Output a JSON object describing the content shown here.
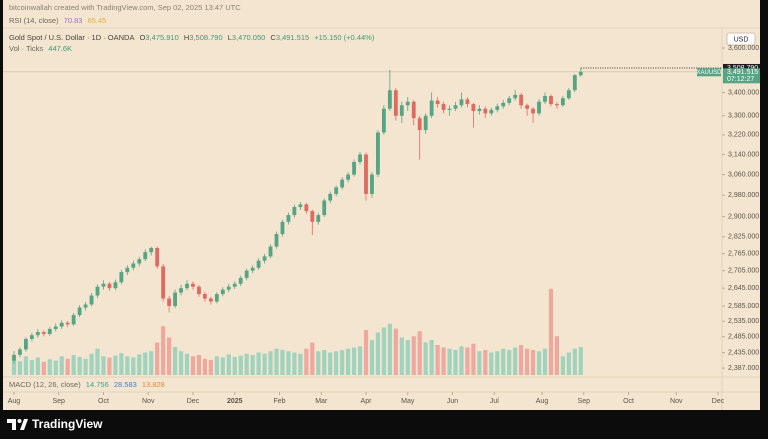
{
  "header": {
    "credit": "bitcoinwallah created with TradingView.com, Sep 02, 2025 13:47 UTC",
    "rsi": {
      "name": "RSI (14, close)",
      "values": [
        70.83,
        65.45
      ],
      "colors": [
        "#9a70d6",
        "#e0b23a"
      ]
    }
  },
  "legend": {
    "symbol": "Gold Spot / U.S. Dollar · 1D · OANDA",
    "open": {
      "prefix": "O",
      "value": 3475.91,
      "label": "3,475.910"
    },
    "high": {
      "prefix": "H",
      "value": 3508.79,
      "label": "3,508.790"
    },
    "low": {
      "prefix": "L",
      "value": 3470.05,
      "label": "3,470.050"
    },
    "close": {
      "prefix": "C",
      "value": 3491.515,
      "label": "3,491.515"
    },
    "change": {
      "value": 15.15,
      "label": "+15.150 (+0.44%)"
    },
    "volume": {
      "name": "Vol · Ticks",
      "value": 447.6,
      "label": "447.6K"
    }
  },
  "chart_data": {
    "type": "candlestick",
    "currency": "USD",
    "log_scale": true,
    "up_color": "#55a584",
    "down_color": "#e06a60",
    "volume_up_color": "#9fd3bd",
    "volume_down_color": "#f0a79e",
    "xlim": [
      -0.5,
      118.5
    ],
    "xticks": [
      {
        "value": 0,
        "label": "Aug"
      },
      {
        "value": 7.5,
        "label": "Sep"
      },
      {
        "value": 15,
        "label": "Oct"
      },
      {
        "value": 22.5,
        "label": "Nov"
      },
      {
        "value": 30,
        "label": "Dec"
      },
      {
        "value": 37,
        "label": "2025"
      },
      {
        "value": 44.5,
        "label": "Feb"
      },
      {
        "value": 51.5,
        "label": "Mar"
      },
      {
        "value": 59,
        "label": "Apr"
      },
      {
        "value": 66,
        "label": "May"
      },
      {
        "value": 73.5,
        "label": "Jun"
      },
      {
        "value": 80.5,
        "label": "Jul"
      },
      {
        "value": 88.5,
        "label": "Aug"
      },
      {
        "value": 95.5,
        "label": "Sep"
      },
      {
        "value": 103,
        "label": "Oct"
      },
      {
        "value": 111,
        "label": "Nov"
      },
      {
        "value": 118,
        "label": "Dec"
      }
    ],
    "ylim": [
      2366,
      3684
    ],
    "yticks": [
      {
        "value": 3600,
        "label": "3,600.000"
      },
      {
        "value": 3400,
        "label": "3,400.000"
      },
      {
        "value": 3300,
        "label": "3,300.000"
      },
      {
        "value": 3220,
        "label": "3,220.000"
      },
      {
        "value": 3140,
        "label": "3,140.000"
      },
      {
        "value": 3060,
        "label": "3,060.000"
      },
      {
        "value": 2980,
        "label": "2,980.000"
      },
      {
        "value": 2900,
        "label": "2,900.000"
      },
      {
        "value": 2825,
        "label": "2,825.000"
      },
      {
        "value": 2765,
        "label": "2,765.000"
      },
      {
        "value": 2705,
        "label": "2,705.000"
      },
      {
        "value": 2645,
        "label": "2,645.000"
      },
      {
        "value": 2585,
        "label": "2,585.000"
      },
      {
        "value": 2535,
        "label": "2,535.000"
      },
      {
        "value": 2485,
        "label": "2,485.000"
      },
      {
        "value": 2435,
        "label": "2,435.000"
      },
      {
        "value": 2387,
        "label": "2,387.000"
      }
    ],
    "high_marker": {
      "value": 3508.79,
      "label": "3,508.790"
    },
    "last_price": {
      "value": 3491.515,
      "label": "3,491.515",
      "symbol": "XAUUSD",
      "countdown": "07:12:27"
    },
    "volume_lim": [
      0,
      1600
    ],
    "candles": [
      [
        2410,
        2440,
        2400,
        2428
      ],
      [
        2428,
        2452,
        2420,
        2445
      ],
      [
        2445,
        2484,
        2438,
        2478
      ],
      [
        2478,
        2498,
        2470,
        2490
      ],
      [
        2490,
        2510,
        2482,
        2500
      ],
      [
        2500,
        2506,
        2486,
        2494
      ],
      [
        2494,
        2516,
        2488,
        2510
      ],
      [
        2510,
        2528,
        2502,
        2518
      ],
      [
        2518,
        2538,
        2510,
        2530
      ],
      [
        2530,
        2536,
        2516,
        2525
      ],
      [
        2525,
        2562,
        2520,
        2555
      ],
      [
        2555,
        2588,
        2548,
        2580
      ],
      [
        2580,
        2598,
        2570,
        2590
      ],
      [
        2590,
        2628,
        2584,
        2620
      ],
      [
        2620,
        2658,
        2612,
        2650
      ],
      [
        2650,
        2672,
        2640,
        2660
      ],
      [
        2660,
        2666,
        2636,
        2645
      ],
      [
        2645,
        2674,
        2638,
        2665
      ],
      [
        2665,
        2708,
        2658,
        2700
      ],
      [
        2700,
        2724,
        2690,
        2715
      ],
      [
        2715,
        2740,
        2706,
        2730
      ],
      [
        2730,
        2754,
        2720,
        2745
      ],
      [
        2745,
        2780,
        2738,
        2770
      ],
      [
        2770,
        2790,
        2758,
        2785
      ],
      [
        2785,
        2790,
        2712,
        2720
      ],
      [
        2720,
        2728,
        2600,
        2610
      ],
      [
        2610,
        2618,
        2564,
        2585
      ],
      [
        2585,
        2640,
        2578,
        2630
      ],
      [
        2630,
        2656,
        2620,
        2645
      ],
      [
        2645,
        2672,
        2638,
        2660
      ],
      [
        2660,
        2668,
        2640,
        2650
      ],
      [
        2650,
        2656,
        2616,
        2625
      ],
      [
        2625,
        2632,
        2600,
        2610
      ],
      [
        2610,
        2616,
        2590,
        2600
      ],
      [
        2600,
        2632,
        2594,
        2625
      ],
      [
        2625,
        2648,
        2618,
        2640
      ],
      [
        2640,
        2660,
        2632,
        2650
      ],
      [
        2650,
        2668,
        2642,
        2660
      ],
      [
        2660,
        2688,
        2652,
        2680
      ],
      [
        2680,
        2712,
        2672,
        2705
      ],
      [
        2705,
        2724,
        2696,
        2715
      ],
      [
        2715,
        2748,
        2708,
        2740
      ],
      [
        2740,
        2764,
        2730,
        2755
      ],
      [
        2755,
        2798,
        2748,
        2790
      ],
      [
        2790,
        2844,
        2782,
        2835
      ],
      [
        2835,
        2888,
        2826,
        2880
      ],
      [
        2880,
        2914,
        2870,
        2905
      ],
      [
        2905,
        2944,
        2896,
        2935
      ],
      [
        2935,
        2955,
        2924,
        2945
      ],
      [
        2945,
        2952,
        2910,
        2920
      ],
      [
        2920,
        2926,
        2832,
        2880
      ],
      [
        2880,
        2914,
        2870,
        2905
      ],
      [
        2905,
        2968,
        2898,
        2960
      ],
      [
        2960,
        2994,
        2950,
        2985
      ],
      [
        2985,
        3018,
        2976,
        3010
      ],
      [
        3010,
        3050,
        3002,
        3040
      ],
      [
        3040,
        3070,
        3030,
        3060
      ],
      [
        3060,
        3120,
        3052,
        3110
      ],
      [
        3110,
        3150,
        3100,
        3140
      ],
      [
        3140,
        3148,
        2960,
        2985
      ],
      [
        2985,
        3070,
        2970,
        3060
      ],
      [
        3060,
        3240,
        3050,
        3230
      ],
      [
        3230,
        3345,
        3220,
        3330
      ],
      [
        3330,
        3500,
        3320,
        3410
      ],
      [
        3410,
        3420,
        3280,
        3300
      ],
      [
        3300,
        3360,
        3270,
        3345
      ],
      [
        3345,
        3380,
        3320,
        3360
      ],
      [
        3360,
        3368,
        3260,
        3290
      ],
      [
        3290,
        3300,
        3120,
        3240
      ],
      [
        3240,
        3310,
        3225,
        3300
      ],
      [
        3300,
        3400,
        3290,
        3365
      ],
      [
        3365,
        3380,
        3335,
        3350
      ],
      [
        3350,
        3360,
        3310,
        3325
      ],
      [
        3325,
        3345,
        3300,
        3330
      ],
      [
        3330,
        3360,
        3320,
        3345
      ],
      [
        3345,
        3400,
        3335,
        3370
      ],
      [
        3370,
        3380,
        3335,
        3350
      ],
      [
        3350,
        3355,
        3250,
        3320
      ],
      [
        3320,
        3345,
        3305,
        3330
      ],
      [
        3330,
        3340,
        3290,
        3310
      ],
      [
        3310,
        3335,
        3300,
        3325
      ],
      [
        3325,
        3352,
        3315,
        3340
      ],
      [
        3340,
        3368,
        3330,
        3355
      ],
      [
        3355,
        3385,
        3345,
        3375
      ],
      [
        3375,
        3410,
        3365,
        3390
      ],
      [
        3390,
        3398,
        3330,
        3345
      ],
      [
        3345,
        3352,
        3300,
        3330
      ],
      [
        3330,
        3336,
        3270,
        3310
      ],
      [
        3310,
        3372,
        3300,
        3360
      ],
      [
        3360,
        3400,
        3350,
        3385
      ],
      [
        3385,
        3392,
        3340,
        3350
      ],
      [
        3350,
        3360,
        3330,
        3345
      ],
      [
        3345,
        3385,
        3338,
        3375
      ],
      [
        3375,
        3420,
        3368,
        3410
      ],
      [
        3410,
        3482,
        3402,
        3476.365
      ],
      [
        3475.91,
        3508.79,
        3470.05,
        3491.515
      ]
    ],
    "volumes": [
      260,
      220,
      300,
      240,
      280,
      210,
      250,
      230,
      300,
      260,
      320,
      290,
      260,
      340,
      420,
      300,
      280,
      310,
      350,
      300,
      280,
      330,
      360,
      380,
      520,
      780,
      600,
      450,
      380,
      340,
      300,
      320,
      260,
      240,
      300,
      280,
      330,
      290,
      310,
      340,
      320,
      360,
      340,
      380,
      420,
      400,
      380,
      360,
      340,
      420,
      520,
      380,
      400,
      360,
      380,
      400,
      420,
      440,
      460,
      720,
      560,
      680,
      760,
      820,
      740,
      600,
      560,
      620,
      700,
      520,
      560,
      480,
      440,
      420,
      400,
      460,
      440,
      500,
      380,
      400,
      360,
      380,
      420,
      400,
      440,
      480,
      420,
      400,
      380,
      420,
      1380,
      620,
      300,
      360,
      420,
      447.6
    ],
    "macd": {
      "name": "MACD (12, 26, close)",
      "values": [
        14.756,
        28.583,
        13.828
      ],
      "colors": [
        "#3aa58a",
        "#3d7fd6",
        "#e8853a"
      ]
    }
  },
  "footer": {
    "brand": "TradingView"
  }
}
